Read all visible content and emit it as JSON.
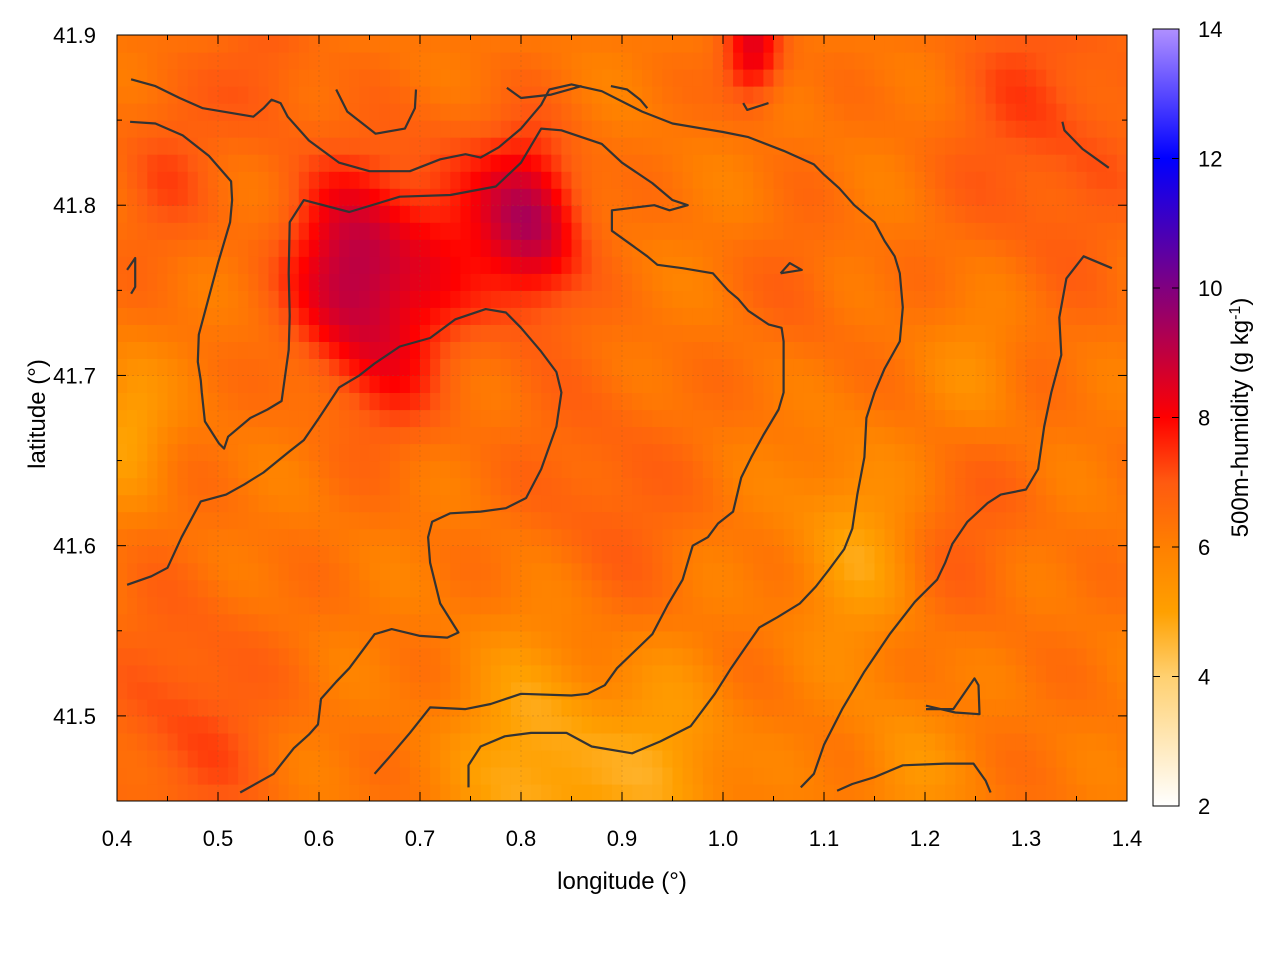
{
  "chart_data": {
    "type": "heatmap",
    "xlabel": "longitude (°)",
    "ylabel": "latitude (°)",
    "colorbar_label_main": "500m-humidity (g kg",
    "colorbar_label_sup": "-1",
    "colorbar_label_end": ")",
    "xlim": [
      0.4,
      1.4
    ],
    "ylim": [
      41.45,
      41.9
    ],
    "xticks": [
      0.4,
      0.5,
      0.6,
      0.7,
      0.8,
      0.9,
      1.0,
      1.1,
      1.2,
      1.3,
      1.4
    ],
    "xtick_labels": [
      "0.4",
      "0.5",
      "0.6",
      "0.7",
      "0.8",
      "0.9",
      "1.0",
      "1.1",
      "1.2",
      "1.3",
      "1.4"
    ],
    "yticks": [
      41.5,
      41.6,
      41.7,
      41.8,
      41.9
    ],
    "ytick_labels": [
      "41.5",
      "41.6",
      "41.7",
      "41.8",
      "41.9"
    ],
    "colorbar": {
      "range": [
        2,
        14
      ],
      "ticks": [
        2,
        4,
        6,
        8,
        10,
        12,
        14
      ],
      "tick_labels": [
        "2",
        "4",
        "6",
        "8",
        "10",
        "12",
        "14"
      ],
      "stops": [
        {
          "value": 2,
          "color": "#ffffff"
        },
        {
          "value": 4,
          "color": "#ffd070"
        },
        {
          "value": 5,
          "color": "#ffa000"
        },
        {
          "value": 6,
          "color": "#ff8000"
        },
        {
          "value": 7,
          "color": "#ff5a10"
        },
        {
          "value": 8,
          "color": "#ff0000"
        },
        {
          "value": 10,
          "color": "#800080"
        },
        {
          "value": 12,
          "color": "#0000ff"
        },
        {
          "value": 14,
          "color": "#b090ff"
        }
      ]
    },
    "grid": true,
    "hotspots": [
      {
        "lon": 0.63,
        "lat": 41.76,
        "value": 9.0,
        "spread": 0.06
      },
      {
        "lon": 0.81,
        "lat": 41.79,
        "value": 9.0,
        "spread": 0.05
      },
      {
        "lon": 0.72,
        "lat": 41.78,
        "value": 7.5,
        "spread": 0.07
      },
      {
        "lon": 0.68,
        "lat": 41.7,
        "value": 7.0,
        "spread": 0.05
      },
      {
        "lon": 1.03,
        "lat": 41.89,
        "value": 8.5,
        "spread": 0.03
      },
      {
        "lon": 1.32,
        "lat": 41.85,
        "value": 7.2,
        "spread": 0.1
      },
      {
        "lon": 0.47,
        "lat": 41.5,
        "value": 7.2,
        "spread": 0.08
      },
      {
        "lon": 0.45,
        "lat": 41.82,
        "value": 7.0,
        "spread": 0.06
      },
      {
        "lon": 0.88,
        "lat": 41.63,
        "value": 6.9,
        "spread": 0.08
      },
      {
        "lon": 0.55,
        "lat": 41.88,
        "value": 7.0,
        "spread": 0.05
      },
      {
        "lon": 1.24,
        "lat": 41.62,
        "value": 6.8,
        "spread": 0.07
      },
      {
        "lon": 1.08,
        "lat": 41.75,
        "value": 6.7,
        "spread": 0.05
      },
      {
        "lon": 0.82,
        "lat": 41.47,
        "value": 4.6,
        "spread": 0.08
      },
      {
        "lon": 1.13,
        "lat": 41.6,
        "value": 5.0,
        "spread": 0.06
      },
      {
        "lon": 0.41,
        "lat": 41.67,
        "value": 5.0,
        "spread": 0.04
      },
      {
        "lon": 0.95,
        "lat": 41.47,
        "value": 5.0,
        "spread": 0.06
      },
      {
        "lon": 1.18,
        "lat": 41.47,
        "value": 5.4,
        "spread": 0.05
      },
      {
        "lon": 1.25,
        "lat": 41.7,
        "value": 5.5,
        "spread": 0.05
      }
    ],
    "contours": [
      {
        "points": [
          [
            0.413,
            41.849
          ],
          [
            0.438,
            41.848
          ],
          [
            0.465,
            41.841
          ],
          [
            0.491,
            41.829
          ],
          [
            0.513,
            41.814
          ],
          [
            0.514,
            41.803
          ],
          [
            0.512,
            41.79
          ],
          [
            0.5,
            41.766
          ],
          [
            0.481,
            41.724
          ],
          [
            0.48,
            41.708
          ],
          [
            0.483,
            41.697
          ],
          [
            0.484,
            41.69
          ],
          [
            0.487,
            41.673
          ],
          [
            0.501,
            41.66
          ],
          [
            0.506,
            41.657
          ],
          [
            0.51,
            41.664
          ],
          [
            0.532,
            41.675
          ],
          [
            0.549,
            41.68
          ],
          [
            0.563,
            41.685
          ],
          [
            0.57,
            41.715
          ],
          [
            0.571,
            41.735
          ],
          [
            0.57,
            41.76
          ],
          [
            0.571,
            41.79
          ],
          [
            0.585,
            41.803
          ],
          [
            0.63,
            41.796
          ],
          [
            0.68,
            41.805
          ],
          [
            0.73,
            41.806
          ],
          [
            0.775,
            41.811
          ],
          [
            0.8,
            41.825
          ],
          [
            0.82,
            41.845
          ],
          [
            0.84,
            41.844
          ],
          [
            0.88,
            41.836
          ],
          [
            0.9,
            41.825
          ],
          [
            0.93,
            41.813
          ],
          [
            0.95,
            41.803
          ],
          [
            0.965,
            41.8
          ],
          [
            0.947,
            41.797
          ],
          [
            0.932,
            41.8
          ],
          [
            0.89,
            41.797
          ],
          [
            0.89,
            41.785
          ],
          [
            0.925,
            41.77
          ],
          [
            0.935,
            41.765
          ],
          [
            0.96,
            41.763
          ],
          [
            0.99,
            41.76
          ],
          [
            1.005,
            41.75
          ],
          [
            1.015,
            41.745
          ],
          [
            1.025,
            41.738
          ],
          [
            1.045,
            41.73
          ],
          [
            1.058,
            41.728
          ],
          [
            1.06,
            41.72
          ],
          [
            1.06,
            41.7
          ],
          [
            1.06,
            41.69
          ],
          [
            1.055,
            41.68
          ],
          [
            1.04,
            41.665
          ],
          [
            1.028,
            41.652
          ],
          [
            1.018,
            41.64
          ],
          [
            1.01,
            41.62
          ],
          [
            0.995,
            41.613
          ],
          [
            0.985,
            41.605
          ],
          [
            0.97,
            41.6
          ],
          [
            0.96,
            41.58
          ],
          [
            0.945,
            41.565
          ],
          [
            0.93,
            41.548
          ],
          [
            0.895,
            41.528
          ],
          [
            0.883,
            41.518
          ],
          [
            0.866,
            41.513
          ],
          [
            0.85,
            41.512
          ],
          [
            0.8,
            41.513
          ],
          [
            0.77,
            41.507
          ],
          [
            0.745,
            41.504
          ],
          [
            0.71,
            41.505
          ],
          [
            0.69,
            41.49
          ],
          [
            0.67,
            41.476
          ],
          [
            0.655,
            41.466
          ]
        ]
      },
      {
        "points": [
          [
            0.414,
            41.874
          ],
          [
            0.438,
            41.87
          ],
          [
            0.462,
            41.863
          ],
          [
            0.485,
            41.857
          ],
          [
            0.535,
            41.852
          ],
          [
            0.545,
            41.857
          ],
          [
            0.553,
            41.862
          ],
          [
            0.562,
            41.86
          ],
          [
            0.569,
            41.852
          ],
          [
            0.59,
            41.838
          ],
          [
            0.62,
            41.825
          ],
          [
            0.65,
            41.82
          ],
          [
            0.69,
            41.82
          ],
          [
            0.72,
            41.827
          ],
          [
            0.745,
            41.83
          ],
          [
            0.76,
            41.828
          ],
          [
            0.778,
            41.834
          ],
          [
            0.8,
            41.845
          ],
          [
            0.82,
            41.859
          ],
          [
            0.828,
            41.868
          ],
          [
            0.85,
            41.871
          ],
          [
            0.88,
            41.867
          ],
          [
            0.92,
            41.855
          ],
          [
            0.95,
            41.848
          ],
          [
            1.0,
            41.843
          ],
          [
            1.025,
            41.84
          ],
          [
            1.06,
            41.832
          ],
          [
            1.09,
            41.824
          ],
          [
            1.1,
            41.818
          ],
          [
            1.115,
            41.81
          ],
          [
            1.13,
            41.8
          ],
          [
            1.15,
            41.79
          ],
          [
            1.16,
            41.779
          ],
          [
            1.17,
            41.77
          ],
          [
            1.175,
            41.76
          ],
          [
            1.178,
            41.74
          ],
          [
            1.175,
            41.72
          ],
          [
            1.16,
            41.704
          ],
          [
            1.15,
            41.69
          ],
          [
            1.142,
            41.675
          ],
          [
            1.14,
            41.652
          ],
          [
            1.133,
            41.63
          ],
          [
            1.128,
            41.61
          ],
          [
            1.12,
            41.598
          ],
          [
            1.105,
            41.586
          ],
          [
            1.092,
            41.576
          ],
          [
            1.076,
            41.566
          ],
          [
            1.054,
            41.558
          ],
          [
            1.036,
            41.552
          ],
          [
            1.022,
            41.54
          ],
          [
            1.008,
            41.528
          ],
          [
            0.992,
            41.513
          ],
          [
            0.968,
            41.494
          ],
          [
            0.938,
            41.485
          ],
          [
            0.91,
            41.478
          ],
          [
            0.87,
            41.482
          ],
          [
            0.845,
            41.49
          ],
          [
            0.81,
            41.49
          ],
          [
            0.784,
            41.488
          ],
          [
            0.76,
            41.482
          ],
          [
            0.748,
            41.471
          ],
          [
            0.748,
            41.458
          ]
        ]
      },
      {
        "points": [
          [
            0.41,
            41.577
          ],
          [
            0.434,
            41.582
          ],
          [
            0.45,
            41.587
          ],
          [
            0.464,
            41.605
          ],
          [
            0.483,
            41.626
          ],
          [
            0.508,
            41.63
          ],
          [
            0.526,
            41.636
          ],
          [
            0.545,
            41.643
          ],
          [
            0.57,
            41.655
          ],
          [
            0.585,
            41.662
          ],
          [
            0.6,
            41.675
          ],
          [
            0.62,
            41.693
          ],
          [
            0.64,
            41.7
          ],
          [
            0.655,
            41.707
          ],
          [
            0.68,
            41.717
          ],
          [
            0.71,
            41.722
          ],
          [
            0.735,
            41.733
          ],
          [
            0.765,
            41.739
          ],
          [
            0.785,
            41.737
          ],
          [
            0.8,
            41.728
          ],
          [
            0.82,
            41.714
          ],
          [
            0.835,
            41.702
          ],
          [
            0.84,
            41.69
          ],
          [
            0.835,
            41.67
          ],
          [
            0.82,
            41.645
          ],
          [
            0.805,
            41.628
          ],
          [
            0.785,
            41.622
          ],
          [
            0.76,
            41.62
          ],
          [
            0.73,
            41.619
          ],
          [
            0.712,
            41.614
          ],
          [
            0.708,
            41.605
          ],
          [
            0.71,
            41.59
          ],
          [
            0.72,
            41.566
          ],
          [
            0.738,
            41.549
          ],
          [
            0.727,
            41.546
          ],
          [
            0.7,
            41.547
          ],
          [
            0.672,
            41.551
          ],
          [
            0.655,
            41.548
          ],
          [
            0.645,
            41.54
          ],
          [
            0.63,
            41.528
          ],
          [
            0.617,
            41.52
          ],
          [
            0.602,
            41.51
          ],
          [
            0.599,
            41.495
          ],
          [
            0.59,
            41.489
          ],
          [
            0.575,
            41.481
          ],
          [
            0.567,
            41.475
          ],
          [
            0.555,
            41.466
          ],
          [
            0.54,
            41.461
          ],
          [
            0.522,
            41.455
          ]
        ]
      },
      {
        "points": [
          [
            1.113,
            41.456
          ],
          [
            1.128,
            41.46
          ],
          [
            1.15,
            41.464
          ],
          [
            1.178,
            41.471
          ],
          [
            1.22,
            41.472
          ],
          [
            1.248,
            41.472
          ],
          [
            1.26,
            41.462
          ],
          [
            1.265,
            41.455
          ]
        ]
      },
      {
        "points": [
          [
            1.385,
            41.763
          ],
          [
            1.357,
            41.77
          ],
          [
            1.34,
            41.757
          ],
          [
            1.333,
            41.734
          ],
          [
            1.335,
            41.712
          ],
          [
            1.325,
            41.69
          ],
          [
            1.318,
            41.67
          ],
          [
            1.312,
            41.645
          ],
          [
            1.3,
            41.633
          ],
          [
            1.275,
            41.63
          ],
          [
            1.262,
            41.625
          ],
          [
            1.242,
            41.614
          ],
          [
            1.227,
            41.601
          ],
          [
            1.22,
            41.59
          ],
          [
            1.212,
            41.58
          ],
          [
            1.19,
            41.567
          ],
          [
            1.165,
            41.548
          ],
          [
            1.14,
            41.526
          ],
          [
            1.118,
            41.504
          ],
          [
            1.1,
            41.483
          ],
          [
            1.09,
            41.466
          ],
          [
            1.077,
            41.458
          ]
        ]
      },
      {
        "points": [
          [
            1.201,
            41.504
          ],
          [
            1.228,
            41.504
          ],
          [
            1.249,
            41.522
          ],
          [
            1.253,
            41.518
          ],
          [
            1.254,
            41.501
          ],
          [
            1.23,
            41.502
          ],
          [
            1.201,
            41.506
          ]
        ]
      },
      {
        "points": [
          [
            1.057,
            41.76
          ],
          [
            1.078,
            41.762
          ],
          [
            1.066,
            41.766
          ],
          [
            1.057,
            41.76
          ]
        ]
      },
      {
        "points": [
          [
            0.617,
            41.868
          ],
          [
            0.628,
            41.855
          ],
          [
            0.656,
            41.842
          ],
          [
            0.685,
            41.845
          ],
          [
            0.695,
            41.857
          ],
          [
            0.696,
            41.868
          ]
        ]
      },
      {
        "points": [
          [
            0.786,
            41.869
          ],
          [
            0.8,
            41.863
          ],
          [
            0.83,
            41.865
          ],
          [
            0.86,
            41.87
          ]
        ]
      },
      {
        "points": [
          [
            0.889,
            41.87
          ],
          [
            0.905,
            41.868
          ],
          [
            0.918,
            41.862
          ],
          [
            0.925,
            41.857
          ]
        ]
      },
      {
        "points": [
          [
            1.02,
            41.86
          ],
          [
            1.024,
            41.856
          ],
          [
            1.045,
            41.86
          ]
        ]
      },
      {
        "points": [
          [
            1.336,
            41.849
          ],
          [
            1.338,
            41.844
          ],
          [
            1.356,
            41.833
          ],
          [
            1.382,
            41.822
          ]
        ]
      },
      {
        "points": [
          [
            0.41,
            41.762
          ],
          [
            0.418,
            41.769
          ],
          [
            0.418,
            41.752
          ],
          [
            0.414,
            41.748
          ]
        ]
      }
    ]
  }
}
